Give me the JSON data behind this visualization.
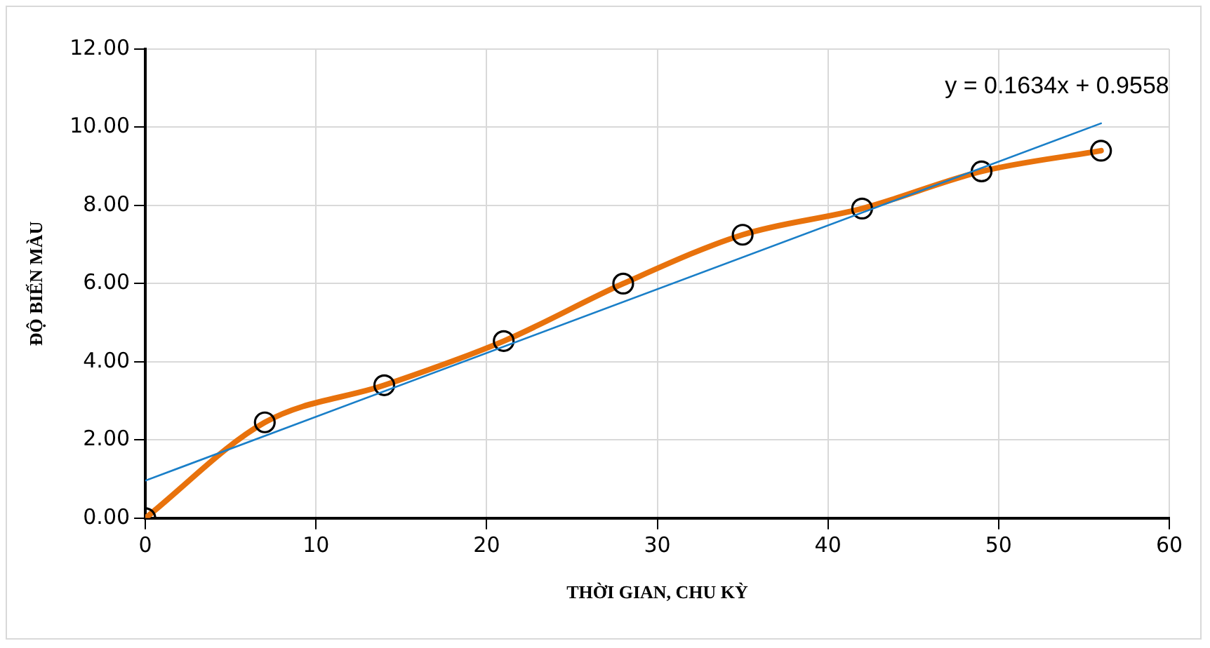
{
  "chart_data": {
    "type": "line",
    "xlabel": "THỜI GIAN, CHU KỲ",
    "ylabel": "ĐỘ BIẾN MÀU",
    "series": [
      {
        "color": "#e8720c",
        "marker": "circle",
        "x": [
          0,
          7,
          14,
          21,
          28,
          35,
          42,
          49,
          56
        ],
        "values": [
          0,
          2.45,
          3.4,
          4.53,
          6.0,
          7.25,
          7.92,
          8.87,
          9.4
        ]
      },
      {
        "type": "line",
        "color": "#1a7fc8",
        "marker": "none",
        "x": [
          0,
          56
        ],
        "values": [
          0.96,
          10.1
        ]
      }
    ],
    "xlim": [
      0,
      60
    ],
    "xticks": [
      0,
      10,
      20,
      30,
      40,
      50,
      60
    ],
    "ylim": [
      0,
      12
    ],
    "yticks": [
      {
        "value": 0,
        "label": "0.00"
      },
      {
        "value": 2,
        "label": "2.00"
      },
      {
        "value": 4,
        "label": "4.00"
      },
      {
        "value": 6,
        "label": "6.00"
      },
      {
        "value": 8,
        "label": "8.00"
      },
      {
        "value": 10,
        "label": "10.00"
      },
      {
        "value": 12,
        "label": "12.00"
      }
    ],
    "grid": true,
    "legend": false,
    "annotations": [
      "y = 0.1634x + 0.9558"
    ]
  }
}
